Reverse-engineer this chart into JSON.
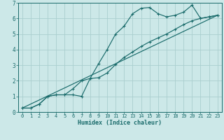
{
  "xlabel": "Humidex (Indice chaleur)",
  "bg_color": "#cce8e8",
  "grid_color": "#aacece",
  "line_color": "#1a6b6b",
  "spine_color": "#1a6b6b",
  "xlim": [
    -0.5,
    23.5
  ],
  "ylim": [
    0,
    7
  ],
  "xticks": [
    0,
    1,
    2,
    3,
    4,
    5,
    6,
    7,
    8,
    9,
    10,
    11,
    12,
    13,
    14,
    15,
    16,
    17,
    18,
    19,
    20,
    21,
    22,
    23
  ],
  "yticks": [
    0,
    1,
    2,
    3,
    4,
    5,
    6,
    7
  ],
  "line1_x": [
    0,
    1,
    2,
    3,
    4,
    5,
    6,
    7,
    8,
    9,
    10,
    11,
    12,
    13,
    14,
    15,
    16,
    17,
    18,
    19,
    20,
    21,
    22,
    23
  ],
  "line1_y": [
    0.25,
    0.25,
    0.5,
    1.0,
    1.1,
    1.1,
    1.1,
    1.0,
    2.15,
    3.1,
    4.0,
    5.0,
    5.5,
    6.3,
    6.65,
    6.7,
    6.3,
    6.1,
    6.2,
    6.4,
    6.85,
    6.0,
    6.1,
    6.2
  ],
  "line2_x": [
    0,
    1,
    2,
    3,
    4,
    5,
    6,
    7,
    8,
    9,
    10,
    11,
    12,
    13,
    14,
    15,
    16,
    17,
    18,
    19,
    20,
    21,
    22,
    23
  ],
  "line2_y": [
    0.25,
    0.25,
    0.5,
    1.0,
    1.1,
    1.1,
    1.5,
    2.0,
    2.15,
    2.2,
    2.5,
    3.05,
    3.5,
    3.85,
    4.2,
    4.5,
    4.75,
    5.0,
    5.3,
    5.6,
    5.85,
    6.0,
    6.1,
    6.2
  ],
  "line3_x": [
    0,
    23
  ],
  "line3_y": [
    0.25,
    6.2
  ],
  "xlabel_fontsize": 6.0,
  "tick_fontsize": 5.0,
  "lw": 0.85,
  "marker_size": 2.8
}
